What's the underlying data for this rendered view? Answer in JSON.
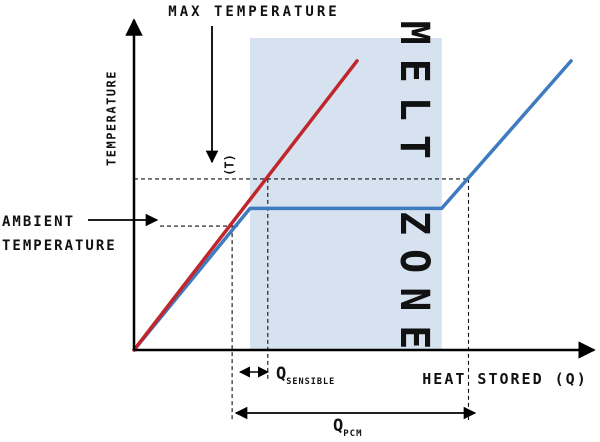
{
  "chart_data": {
    "type": "line",
    "title": "",
    "xlabel": "HEAT STORED (Q)",
    "ylabel": "TEMPERATURE",
    "melt_zone_label": "MELT ZONE",
    "annotations": {
      "max_temperature": "MAX TEMPERATURE",
      "ambient_temperature": [
        "AMBIENT",
        "TEMPERATURE"
      ],
      "t_marker": "(T)",
      "q_sensible": {
        "main": "Q",
        "sub": "SENSIBLE"
      },
      "q_pcm": {
        "main": "Q",
        "sub": "PCM"
      }
    },
    "xlim": [
      0,
      100
    ],
    "ylim": [
      0,
      100
    ],
    "melt_zone": [
      26,
      69
    ],
    "reference_levels": {
      "ambient": 42,
      "max": 58
    },
    "series": [
      {
        "color": "#c0272d",
        "x": [
          0,
          50
        ],
        "y": [
          0,
          98
        ]
      },
      {
        "color": "#3e7bbf",
        "x": [
          0,
          26,
          69,
          98
        ],
        "y": [
          0,
          48,
          48,
          98
        ]
      }
    ],
    "guides": {
      "ambient_drop_x": 22,
      "max_drop_x": 30,
      "pcm_drop_x": 75
    },
    "colors": {
      "melt_zone_fill": "#d6e2ef",
      "axis": "#000000"
    }
  }
}
